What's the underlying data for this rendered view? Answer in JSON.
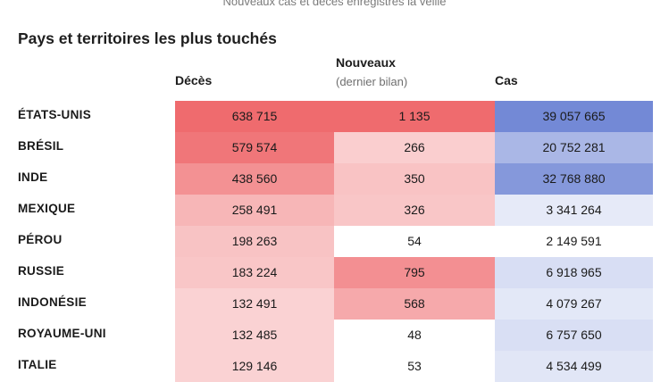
{
  "subtitle": "Nouveaux cas et décès enregistrés la veille",
  "section_title": "Pays et territoires les plus touchés",
  "colors": {
    "deaths_scale": "#ef6b6e",
    "new_scale": "#ef6b6e",
    "cases_scale": "#7389d6",
    "background": "#ffffff"
  },
  "chart_data": {
    "type": "table",
    "title": "Pays et territoires les plus touchés",
    "columns": {
      "deaths": "Décès",
      "new_title": "Nouveaux",
      "new_sub": "(dernier bilan)",
      "cases": "Cas"
    },
    "rows": [
      {
        "country": "ÉTATS-UNIS",
        "deaths": "638 715",
        "new": "1 135",
        "cases": "39 057 665",
        "deaths_value": 638715,
        "new_value": 1135,
        "cases_value": 39057665
      },
      {
        "country": "BRÉSIL",
        "deaths": "579 574",
        "new": "266",
        "cases": "20 752 281",
        "deaths_value": 579574,
        "new_value": 266,
        "cases_value": 20752281
      },
      {
        "country": "INDE",
        "deaths": "438 560",
        "new": "350",
        "cases": "32 768 880",
        "deaths_value": 438560,
        "new_value": 350,
        "cases_value": 32768880
      },
      {
        "country": "MEXIQUE",
        "deaths": "258 491",
        "new": "326",
        "cases": "3 341 264",
        "deaths_value": 258491,
        "new_value": 326,
        "cases_value": 3341264
      },
      {
        "country": "PÉROU",
        "deaths": "198 263",
        "new": "54",
        "cases": "2 149 591",
        "deaths_value": 198263,
        "new_value": 54,
        "cases_value": 2149591
      },
      {
        "country": "RUSSIE",
        "deaths": "183 224",
        "new": "795",
        "cases": "6 918 965",
        "deaths_value": 183224,
        "new_value": 795,
        "cases_value": 6918965
      },
      {
        "country": "INDONÉSIE",
        "deaths": "132 491",
        "new": "568",
        "cases": "4 079 267",
        "deaths_value": 132491,
        "new_value": 568,
        "cases_value": 4079267
      },
      {
        "country": "ROYAUME-UNI",
        "deaths": "132 485",
        "new": "48",
        "cases": "6 757 650",
        "deaths_value": 132485,
        "new_value": 48,
        "cases_value": 6757650
      },
      {
        "country": "ITALIE",
        "deaths": "129 146",
        "new": "53",
        "cases": "4 534 499",
        "deaths_value": 129146,
        "new_value": 53,
        "cases_value": 4534499
      }
    ]
  }
}
